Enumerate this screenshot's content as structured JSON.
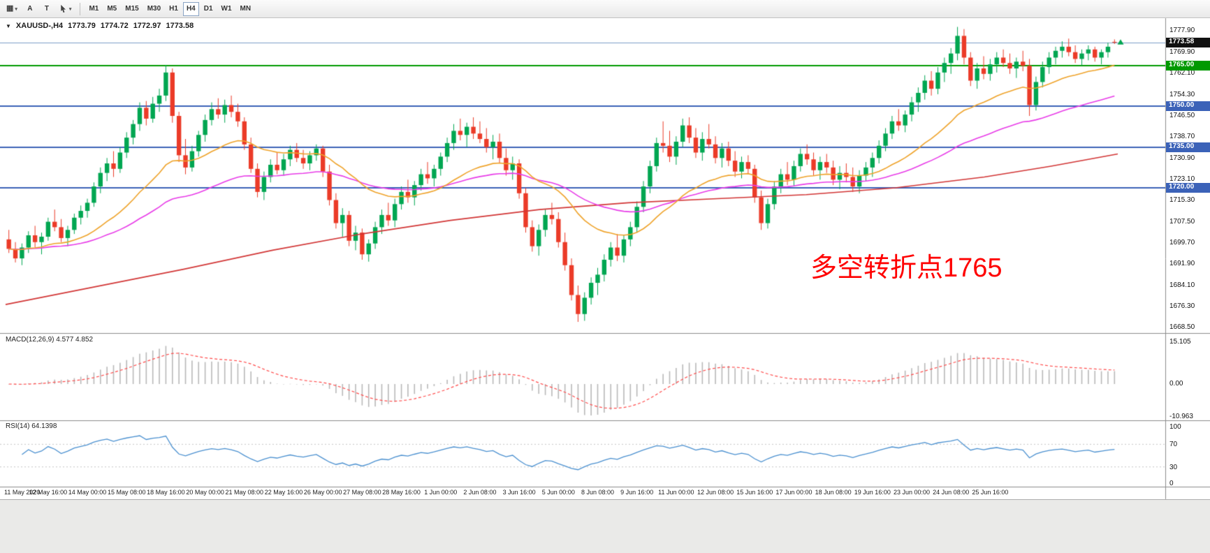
{
  "icons": {
    "chart_type_glyph": "▦",
    "caret_glyph": "▾",
    "collapse_glyph": "▼"
  },
  "toolbar": {
    "button_a": "A",
    "button_t": "T",
    "timeframes": [
      "M1",
      "M5",
      "M15",
      "M30",
      "H1",
      "H4",
      "D1",
      "W1",
      "MN"
    ],
    "active_timeframe": "H4"
  },
  "symbol_header": {
    "symbol": "XAUUSD-,H4",
    "open": "1773.79",
    "high": "1774.72",
    "low": "1772.97",
    "close": "1773.58"
  },
  "annotation": {
    "text": "多空转折点1765",
    "color": "#ff0000"
  },
  "price_axis": {
    "labels": [
      "1777.90",
      "1769.90",
      "1762.10",
      "1754.30",
      "1746.50",
      "1738.70",
      "1730.90",
      "1723.10",
      "1715.30",
      "1707.50",
      "1699.70",
      "1691.90",
      "1684.10",
      "1676.30",
      "1668.50"
    ],
    "tags": [
      {
        "text": "1773.58",
        "price": 1773.58,
        "bg": "#111111"
      },
      {
        "text": "1765.00",
        "price": 1765.0,
        "bg": "#009900"
      },
      {
        "text": "1750.00",
        "price": 1750.0,
        "bg": "#3b62b8"
      },
      {
        "text": "1735.00",
        "price": 1735.0,
        "bg": "#3b62b8"
      },
      {
        "text": "1720.00",
        "price": 1720.0,
        "bg": "#3b62b8"
      }
    ]
  },
  "macd_panel": {
    "label": "MACD(12,26,9) 4.577 4.852",
    "axis_labels": [
      "15.105",
      "0.00",
      "-10.963"
    ],
    "histogram_color": "#b9b9b9",
    "signal_color": "#ff4a4a"
  },
  "rsi_panel": {
    "label": "RSI(14) 64.1398",
    "axis_labels": [
      "100",
      "70",
      "30",
      "0"
    ],
    "levels": [
      70,
      30
    ],
    "line_color": "#4a90d0",
    "level_color": "#c4c4c4"
  },
  "date_axis": {
    "labels": [
      "11 May 2020",
      "12 May 16:00",
      "14 May 00:00",
      "15 May 08:00",
      "18 May 16:00",
      "20 May 00:00",
      "21 May 08:00",
      "22 May 16:00",
      "26 May 00:00",
      "27 May 08:00",
      "28 May 16:00",
      "1 Jun 00:00",
      "2 Jun 08:00",
      "3 Jun 16:00",
      "5 Jun 00:00",
      "8 Jun 08:00",
      "9 Jun 16:00",
      "11 Jun 00:00",
      "12 Jun 08:00",
      "15 Jun 16:00",
      "17 Jun 00:00",
      "18 Jun 08:00",
      "19 Jun 16:00",
      "23 Jun 00:00",
      "24 Jun 08:00",
      "25 Jun 16:00"
    ]
  },
  "chart_data": {
    "type": "candlestick",
    "symbol": "XAUUSD",
    "timeframe": "H4",
    "price_range": [
      1668.5,
      1777.9
    ],
    "bid_price": 1773.58,
    "up_color": "#00a651",
    "down_color": "#eb3b28",
    "hlines": [
      {
        "price": 1765.0,
        "color": "#009900",
        "width": 2
      },
      {
        "price": 1750.0,
        "color": "#3b62b8",
        "width": 2
      },
      {
        "price": 1735.0,
        "color": "#3b62b8",
        "width": 2
      },
      {
        "price": 1720.0,
        "color": "#3b62b8",
        "width": 2
      },
      {
        "price": 1773.58,
        "color": "#7d9ec7",
        "width": 1
      }
    ],
    "ma_lines": [
      {
        "name": "ma-slow",
        "type": "points",
        "color": "#d23535",
        "points": [
          [
            0,
            1677
          ],
          [
            0.08,
            1683.5
          ],
          [
            0.16,
            1690
          ],
          [
            0.24,
            1697
          ],
          [
            0.32,
            1703
          ],
          [
            0.4,
            1708
          ],
          [
            0.48,
            1712
          ],
          [
            0.56,
            1714.5
          ],
          [
            0.64,
            1716
          ],
          [
            0.72,
            1717.5
          ],
          [
            0.8,
            1720
          ],
          [
            0.88,
            1724
          ],
          [
            0.94,
            1728
          ],
          [
            1,
            1732.5
          ]
        ]
      },
      {
        "name": "ma-medium",
        "type": "ema",
        "period": 55,
        "color": "#e83be8"
      },
      {
        "name": "ma-fast",
        "type": "ema",
        "period": 24,
        "color": "#efa32a"
      }
    ],
    "candles": [
      [
        1701.0,
        1704.5,
        1696.0,
        1697.5
      ],
      [
        1697.5,
        1700.0,
        1692.5,
        1694.0
      ],
      [
        1694.0,
        1699.5,
        1691.5,
        1698.0
      ],
      [
        1698.0,
        1704.0,
        1696.0,
        1702.5
      ],
      [
        1702.5,
        1706.0,
        1698.0,
        1700.0
      ],
      [
        1700.0,
        1703.5,
        1695.5,
        1702.0
      ],
      [
        1702.0,
        1709.0,
        1700.5,
        1707.5
      ],
      [
        1707.5,
        1712.0,
        1704.0,
        1705.5
      ],
      [
        1705.5,
        1708.5,
        1700.0,
        1701.5
      ],
      [
        1701.5,
        1706.0,
        1698.5,
        1704.5
      ],
      [
        1704.5,
        1710.5,
        1703.0,
        1709.0
      ],
      [
        1709.0,
        1713.5,
        1706.5,
        1711.5
      ],
      [
        1711.5,
        1716.0,
        1709.0,
        1714.5
      ],
      [
        1714.5,
        1722.0,
        1713.0,
        1720.5
      ],
      [
        1720.5,
        1727.5,
        1718.0,
        1725.5
      ],
      [
        1725.5,
        1731.0,
        1722.5,
        1729.0
      ],
      [
        1729.0,
        1733.5,
        1724.0,
        1727.0
      ],
      [
        1727.0,
        1735.0,
        1725.5,
        1733.0
      ],
      [
        1733.0,
        1740.5,
        1731.0,
        1738.5
      ],
      [
        1738.5,
        1745.0,
        1736.0,
        1743.5
      ],
      [
        1743.5,
        1751.5,
        1741.0,
        1749.5
      ],
      [
        1749.5,
        1752.0,
        1743.0,
        1745.5
      ],
      [
        1745.5,
        1753.5,
        1744.0,
        1751.0
      ],
      [
        1751.0,
        1756.5,
        1748.0,
        1754.0
      ],
      [
        1754.0,
        1765.3,
        1752.0,
        1762.5
      ],
      [
        1762.5,
        1764.0,
        1744.0,
        1746.5
      ],
      [
        1746.5,
        1748.0,
        1729.5,
        1732.0
      ],
      [
        1732.0,
        1738.0,
        1725.0,
        1727.5
      ],
      [
        1727.5,
        1735.5,
        1726.0,
        1733.5
      ],
      [
        1733.5,
        1741.0,
        1731.5,
        1739.5
      ],
      [
        1739.5,
        1747.0,
        1737.0,
        1745.0
      ],
      [
        1745.0,
        1751.5,
        1743.0,
        1749.0
      ],
      [
        1749.0,
        1753.0,
        1745.5,
        1747.0
      ],
      [
        1747.0,
        1752.5,
        1744.0,
        1750.5
      ],
      [
        1750.5,
        1754.0,
        1746.0,
        1748.0
      ],
      [
        1748.0,
        1751.0,
        1742.5,
        1744.5
      ],
      [
        1744.5,
        1746.0,
        1734.0,
        1736.0
      ],
      [
        1736.0,
        1738.5,
        1725.5,
        1727.0
      ],
      [
        1727.0,
        1729.0,
        1716.5,
        1718.5
      ],
      [
        1718.5,
        1726.0,
        1715.5,
        1724.0
      ],
      [
        1724.0,
        1730.5,
        1722.0,
        1728.5
      ],
      [
        1728.5,
        1733.0,
        1725.0,
        1726.5
      ],
      [
        1726.5,
        1732.5,
        1724.5,
        1730.5
      ],
      [
        1730.5,
        1735.5,
        1728.0,
        1734.0
      ],
      [
        1734.0,
        1736.5,
        1729.5,
        1731.0
      ],
      [
        1731.0,
        1734.0,
        1727.0,
        1729.0
      ],
      [
        1729.0,
        1733.5,
        1726.5,
        1732.0
      ],
      [
        1732.0,
        1736.0,
        1730.0,
        1734.5
      ],
      [
        1734.5,
        1735.5,
        1724.0,
        1726.0
      ],
      [
        1726.0,
        1728.5,
        1713.5,
        1715.5
      ],
      [
        1715.5,
        1718.0,
        1705.0,
        1707.0
      ],
      [
        1707.0,
        1712.5,
        1702.0,
        1710.0
      ],
      [
        1710.0,
        1711.5,
        1698.5,
        1700.5
      ],
      [
        1700.5,
        1706.0,
        1697.0,
        1703.5
      ],
      [
        1703.5,
        1705.0,
        1693.5,
        1695.5
      ],
      [
        1695.5,
        1701.0,
        1692.8,
        1699.5
      ],
      [
        1699.5,
        1707.5,
        1697.5,
        1705.5
      ],
      [
        1705.5,
        1712.0,
        1703.0,
        1710.0
      ],
      [
        1710.0,
        1714.5,
        1706.0,
        1708.0
      ],
      [
        1708.0,
        1716.0,
        1705.5,
        1714.0
      ],
      [
        1714.0,
        1720.5,
        1712.0,
        1718.5
      ],
      [
        1718.5,
        1723.0,
        1714.5,
        1716.5
      ],
      [
        1716.5,
        1722.5,
        1713.5,
        1721.0
      ],
      [
        1721.0,
        1727.0,
        1719.0,
        1725.0
      ],
      [
        1725.0,
        1729.5,
        1721.5,
        1723.5
      ],
      [
        1723.5,
        1728.5,
        1720.5,
        1727.0
      ],
      [
        1727.0,
        1733.0,
        1724.5,
        1731.5
      ],
      [
        1731.5,
        1738.5,
        1729.5,
        1736.5
      ],
      [
        1736.5,
        1743.5,
        1734.0,
        1741.0
      ],
      [
        1741.0,
        1745.5,
        1737.5,
        1739.5
      ],
      [
        1739.5,
        1744.0,
        1735.0,
        1742.5
      ],
      [
        1742.5,
        1746.0,
        1738.0,
        1740.0
      ],
      [
        1740.0,
        1744.5,
        1736.5,
        1738.0
      ],
      [
        1738.0,
        1742.0,
        1733.0,
        1735.0
      ],
      [
        1735.0,
        1739.5,
        1730.5,
        1737.0
      ],
      [
        1737.0,
        1740.0,
        1729.0,
        1731.0
      ],
      [
        1731.0,
        1734.5,
        1724.5,
        1726.5
      ],
      [
        1726.5,
        1731.5,
        1723.0,
        1729.0
      ],
      [
        1729.0,
        1730.5,
        1716.0,
        1718.0
      ],
      [
        1718.0,
        1720.0,
        1703.5,
        1705.5
      ],
      [
        1705.5,
        1708.0,
        1696.5,
        1698.5
      ],
      [
        1698.5,
        1706.5,
        1695.0,
        1704.5
      ],
      [
        1704.5,
        1712.0,
        1702.0,
        1710.0
      ],
      [
        1710.0,
        1714.5,
        1706.5,
        1708.5
      ],
      [
        1708.5,
        1711.0,
        1698.0,
        1700.0
      ],
      [
        1700.0,
        1703.5,
        1689.5,
        1691.5
      ],
      [
        1691.5,
        1694.0,
        1678.5,
        1680.5
      ],
      [
        1680.5,
        1684.0,
        1670.6,
        1673.5
      ],
      [
        1673.5,
        1681.5,
        1671.0,
        1679.5
      ],
      [
        1679.5,
        1687.0,
        1677.0,
        1685.0
      ],
      [
        1685.0,
        1690.5,
        1680.5,
        1688.0
      ],
      [
        1688.0,
        1695.5,
        1685.5,
        1693.5
      ],
      [
        1693.5,
        1700.0,
        1691.0,
        1698.0
      ],
      [
        1698.0,
        1703.0,
        1693.0,
        1695.0
      ],
      [
        1695.0,
        1702.5,
        1692.5,
        1701.0
      ],
      [
        1701.0,
        1707.5,
        1698.5,
        1705.5
      ],
      [
        1705.5,
        1715.0,
        1703.5,
        1713.0
      ],
      [
        1713.0,
        1722.5,
        1711.0,
        1720.5
      ],
      [
        1720.5,
        1730.0,
        1718.0,
        1728.0
      ],
      [
        1728.0,
        1738.5,
        1726.0,
        1736.5
      ],
      [
        1736.5,
        1744.5,
        1733.0,
        1735.5
      ],
      [
        1735.5,
        1741.0,
        1729.5,
        1731.5
      ],
      [
        1731.5,
        1739.0,
        1728.5,
        1737.0
      ],
      [
        1737.0,
        1745.5,
        1735.0,
        1743.0
      ],
      [
        1743.0,
        1746.0,
        1736.5,
        1738.5
      ],
      [
        1738.5,
        1742.0,
        1731.0,
        1733.0
      ],
      [
        1733.0,
        1740.5,
        1730.0,
        1738.0
      ],
      [
        1738.0,
        1743.5,
        1734.5,
        1736.0
      ],
      [
        1736.0,
        1739.0,
        1729.0,
        1731.0
      ],
      [
        1731.0,
        1736.5,
        1727.5,
        1734.5
      ],
      [
        1734.5,
        1737.0,
        1728.0,
        1730.0
      ],
      [
        1730.0,
        1733.5,
        1724.0,
        1726.0
      ],
      [
        1726.0,
        1731.5,
        1723.5,
        1729.5
      ],
      [
        1729.5,
        1732.0,
        1725.0,
        1727.0
      ],
      [
        1727.0,
        1728.5,
        1714.5,
        1716.5
      ],
      [
        1716.5,
        1719.0,
        1704.5,
        1707.0
      ],
      [
        1707.0,
        1716.0,
        1705.0,
        1714.0
      ],
      [
        1714.0,
        1722.5,
        1712.0,
        1720.5
      ],
      [
        1720.5,
        1727.0,
        1718.0,
        1725.0
      ],
      [
        1725.0,
        1729.5,
        1721.0,
        1723.0
      ],
      [
        1723.0,
        1730.0,
        1720.5,
        1728.0
      ],
      [
        1728.0,
        1734.5,
        1726.0,
        1732.5
      ],
      [
        1732.5,
        1736.0,
        1728.5,
        1730.5
      ],
      [
        1730.5,
        1733.0,
        1724.5,
        1726.5
      ],
      [
        1726.5,
        1731.5,
        1723.0,
        1729.5
      ],
      [
        1729.5,
        1732.5,
        1725.5,
        1727.5
      ],
      [
        1727.5,
        1730.0,
        1721.0,
        1723.0
      ],
      [
        1723.0,
        1728.0,
        1719.5,
        1725.5
      ],
      [
        1725.5,
        1729.0,
        1722.0,
        1724.0
      ],
      [
        1724.0,
        1727.5,
        1718.5,
        1720.5
      ],
      [
        1720.5,
        1726.5,
        1718.0,
        1724.5
      ],
      [
        1724.5,
        1729.5,
        1722.5,
        1727.5
      ],
      [
        1727.5,
        1733.0,
        1724.0,
        1731.0
      ],
      [
        1731.0,
        1737.5,
        1729.0,
        1735.5
      ],
      [
        1735.5,
        1742.0,
        1733.5,
        1740.0
      ],
      [
        1740.0,
        1746.5,
        1738.0,
        1744.5
      ],
      [
        1744.5,
        1749.0,
        1741.0,
        1743.0
      ],
      [
        1743.0,
        1748.5,
        1740.5,
        1747.0
      ],
      [
        1747.0,
        1753.5,
        1744.5,
        1751.5
      ],
      [
        1751.5,
        1757.0,
        1748.0,
        1755.0
      ],
      [
        1755.0,
        1761.5,
        1752.5,
        1759.5
      ],
      [
        1759.5,
        1763.0,
        1754.0,
        1756.5
      ],
      [
        1756.5,
        1764.5,
        1754.5,
        1762.5
      ],
      [
        1762.5,
        1768.0,
        1759.0,
        1766.0
      ],
      [
        1766.0,
        1771.5,
        1762.0,
        1769.5
      ],
      [
        1769.5,
        1779.3,
        1767.0,
        1776.0
      ],
      [
        1776.0,
        1778.5,
        1765.5,
        1768.0
      ],
      [
        1768.0,
        1770.0,
        1757.5,
        1759.5
      ],
      [
        1759.5,
        1766.0,
        1756.5,
        1764.0
      ],
      [
        1764.0,
        1768.5,
        1760.0,
        1762.0
      ],
      [
        1762.0,
        1767.5,
        1759.5,
        1765.5
      ],
      [
        1765.5,
        1770.0,
        1762.5,
        1768.0
      ],
      [
        1768.0,
        1771.0,
        1764.5,
        1766.0
      ],
      [
        1766.0,
        1769.5,
        1762.0,
        1764.0
      ],
      [
        1764.0,
        1768.0,
        1760.5,
        1766.5
      ],
      [
        1766.5,
        1770.5,
        1763.0,
        1765.0
      ],
      [
        1765.0,
        1767.5,
        1746.5,
        1750.5
      ],
      [
        1750.5,
        1761.0,
        1748.5,
        1759.0
      ],
      [
        1759.0,
        1766.5,
        1757.0,
        1764.5
      ],
      [
        1764.5,
        1770.0,
        1762.0,
        1768.0
      ],
      [
        1768.0,
        1772.0,
        1765.5,
        1770.5
      ],
      [
        1770.5,
        1774.0,
        1768.0,
        1772.0
      ],
      [
        1772.0,
        1775.0,
        1768.5,
        1770.0
      ],
      [
        1770.0,
        1772.5,
        1766.0,
        1767.5
      ],
      [
        1767.5,
        1771.0,
        1765.0,
        1769.5
      ],
      [
        1769.5,
        1772.5,
        1767.0,
        1771.0
      ],
      [
        1771.0,
        1772.0,
        1766.5,
        1768.0
      ],
      [
        1768.0,
        1771.0,
        1765.5,
        1770.0
      ],
      [
        1770.0,
        1773.5,
        1768.0,
        1772.0
      ],
      [
        1773.8,
        1774.7,
        1773.0,
        1773.6
      ]
    ],
    "x_label_every": 6
  }
}
